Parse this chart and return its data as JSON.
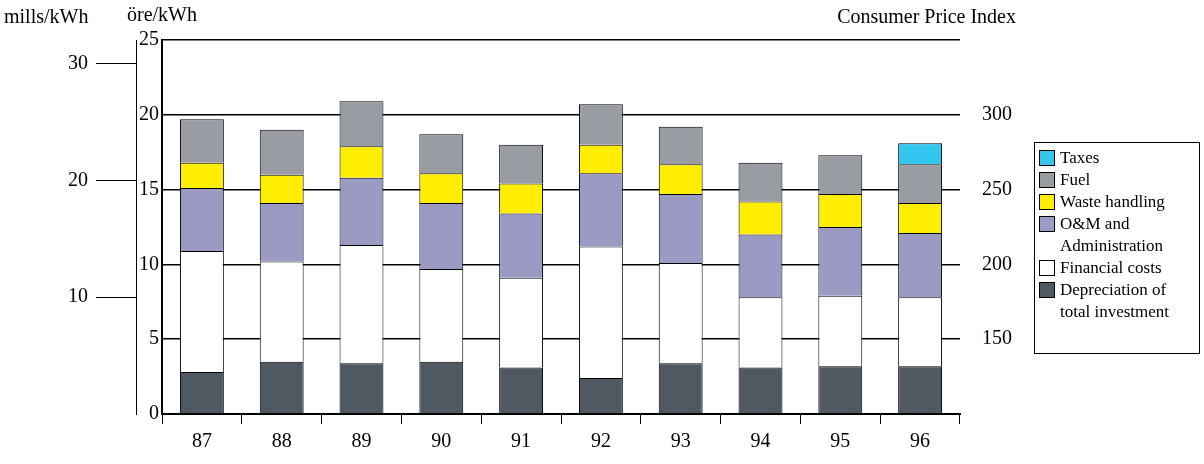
{
  "chart_data": {
    "type": "bar",
    "stacked": true,
    "ylabel": "öre/kWh",
    "y2label": "Consumer Price Index",
    "y3label": "mills/kWh",
    "categories": [
      "87",
      "88",
      "89",
      "90",
      "91",
      "92",
      "93",
      "94",
      "95",
      "96"
    ],
    "series": [
      {
        "name": "Depreciation of total investment",
        "color": "#505862",
        "values": [
          2.8,
          3.5,
          3.4,
          3.5,
          3.1,
          2.4,
          3.4,
          3.1,
          3.2,
          3.2
        ]
      },
      {
        "name": "Financial costs",
        "color": "#ffffff",
        "values": [
          8.1,
          6.7,
          7.9,
          6.2,
          6.0,
          8.8,
          6.7,
          4.7,
          4.7,
          4.6
        ]
      },
      {
        "name": "O&M and Administration",
        "color": "#9a9ac2",
        "values": [
          4.2,
          3.9,
          4.5,
          4.4,
          4.3,
          4.9,
          4.6,
          4.2,
          4.6,
          4.3
        ]
      },
      {
        "name": "Waste handling",
        "color": "#ffee00",
        "values": [
          1.7,
          1.9,
          2.1,
          2.0,
          2.0,
          1.9,
          2.0,
          2.2,
          2.2,
          2.0
        ]
      },
      {
        "name": "Fuel",
        "color": "#9a9ca3",
        "values": [
          2.9,
          3.0,
          3.0,
          2.6,
          2.6,
          2.7,
          2.5,
          2.6,
          2.6,
          2.6
        ]
      },
      {
        "name": "Taxes",
        "color": "#33c6ee",
        "values": [
          null,
          null,
          null,
          null,
          null,
          null,
          null,
          null,
          null,
          1.4
        ]
      }
    ],
    "ylim": [
      0,
      25
    ],
    "yticks": [
      0,
      5,
      10,
      15,
      20,
      25
    ],
    "y2lim": [
      100,
      350
    ],
    "y2ticks": [
      150,
      200,
      250,
      300
    ],
    "y3lim": [
      0,
      32
    ],
    "y3ticks": [
      10,
      20,
      30
    ],
    "grid": "y",
    "legend": "right"
  }
}
